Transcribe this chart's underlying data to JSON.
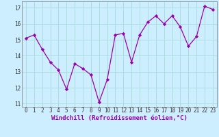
{
  "x": [
    0,
    1,
    2,
    3,
    4,
    5,
    6,
    7,
    8,
    9,
    10,
    11,
    12,
    13,
    14,
    15,
    16,
    17,
    18,
    19,
    20,
    21,
    22,
    23
  ],
  "y": [
    15.1,
    15.3,
    14.4,
    13.6,
    13.1,
    11.9,
    13.5,
    13.2,
    12.8,
    11.1,
    12.5,
    15.3,
    15.4,
    13.6,
    15.3,
    16.1,
    16.5,
    16.0,
    16.5,
    15.8,
    14.6,
    15.2,
    17.1,
    16.9
  ],
  "xlim": [
    -0.5,
    23.5
  ],
  "ylim": [
    10.8,
    17.4
  ],
  "yticks": [
    11,
    12,
    13,
    14,
    15,
    16,
    17
  ],
  "xticks": [
    0,
    1,
    2,
    3,
    4,
    5,
    6,
    7,
    8,
    9,
    10,
    11,
    12,
    13,
    14,
    15,
    16,
    17,
    18,
    19,
    20,
    21,
    22,
    23
  ],
  "xlabel": "Windchill (Refroidissement éolien,°C)",
  "line_color": "#9900aa",
  "marker": "D",
  "marker_size": 2.2,
  "bg_color": "#cceeff",
  "grid_color": "#aadddd",
  "tick_fontsize": 5.5,
  "xlabel_fontsize": 6.5
}
